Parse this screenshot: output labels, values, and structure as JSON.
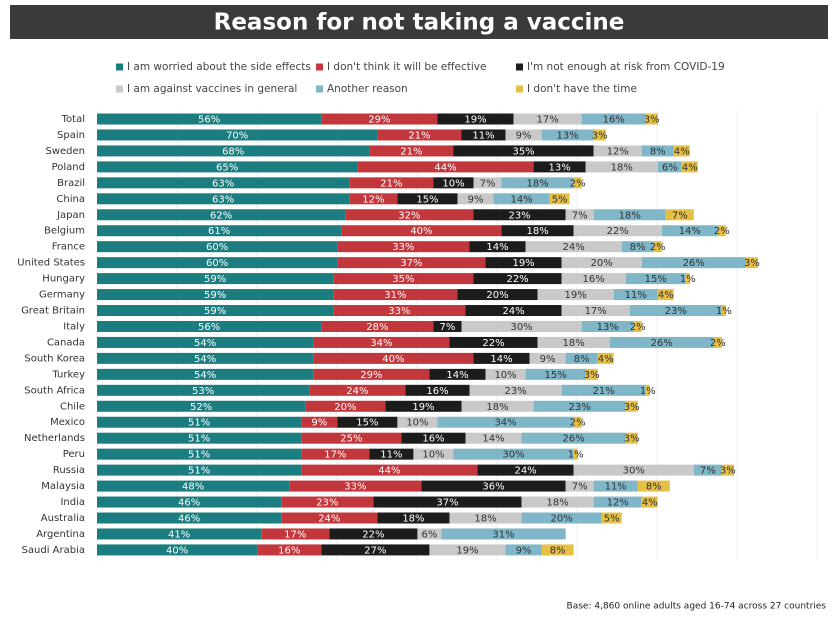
{
  "chart_data": {
    "type": "stacked-bar-horizontal",
    "title": "Reason for not taking a vaccine",
    "footnote": "Base: 4,860 online adults aged 16-74 across 27 countries",
    "categories": [
      "Total",
      "Spain",
      "Sweden",
      "Poland",
      "Brazil",
      "China",
      "Japan",
      "Belgium",
      "France",
      "United States",
      "Hungary",
      "Germany",
      "Great Britain",
      "Italy",
      "Canada",
      "South Korea",
      "Turkey",
      "South Africa",
      "Chile",
      "Mexico",
      "Netherlands",
      "Peru",
      "Russia",
      "Malaysia",
      "India",
      "Australia",
      "Argentina",
      "Saudi Arabia"
    ],
    "xlim": [
      0,
      183
    ],
    "grid": true,
    "series": [
      {
        "name": "I am worried about the side effects",
        "color": "#1b7d7f",
        "values": [
          56,
          70,
          68,
          65,
          63,
          63,
          62,
          61,
          60,
          60,
          59,
          59,
          59,
          56,
          54,
          54,
          54,
          53,
          52,
          51,
          51,
          51,
          51,
          48,
          46,
          46,
          41,
          40
        ],
        "value_labels": [
          "56%",
          "70%",
          "68%",
          "65%",
          "63%",
          "63%",
          "62%",
          "61%",
          "60%",
          "60%",
          "59%",
          "59%",
          "59%",
          "56%",
          "54%",
          "54%",
          "54%",
          "53%",
          "52%",
          "51%",
          "51%",
          "51%",
          "51%",
          "48%",
          "46%",
          "46%",
          "41%",
          "40%"
        ]
      },
      {
        "name": "I don't think it will be effective",
        "color": "#c1373b",
        "values": [
          29,
          21,
          21,
          44,
          21,
          12,
          32,
          40,
          33,
          37,
          35,
          31,
          33,
          28,
          34,
          40,
          29,
          24,
          20,
          9,
          25,
          17,
          44,
          33,
          23,
          24,
          17,
          16
        ],
        "value_labels": [
          "29%",
          "21%",
          "21%",
          "44%",
          "21%",
          "12%",
          "32%",
          "40%",
          "33%",
          "37%",
          "35%",
          "31%",
          "33%",
          "28%",
          "34%",
          "40%",
          "29%",
          "24%",
          "20%",
          "9%",
          "25%",
          "17%",
          "44%",
          "33%",
          "23%",
          "24%",
          "17%",
          "16%"
        ]
      },
      {
        "name": "I'm not enough at risk from COVID-19",
        "color": "#1c1c1c",
        "values": [
          19,
          11,
          35,
          13,
          10,
          15,
          23,
          18,
          14,
          19,
          22,
          20,
          24,
          7,
          22,
          14,
          14,
          16,
          19,
          15,
          16,
          11,
          24,
          36,
          37,
          18,
          22,
          27
        ],
        "value_labels": [
          "19%",
          "11%",
          "35%",
          "13%",
          "10%",
          "15%",
          "23%",
          "18%",
          "14%",
          "19%",
          "22%",
          "20%",
          "24%",
          "7%",
          "22%",
          "14%",
          "14%",
          "16%",
          "19%",
          "15%",
          "16%",
          "11%",
          "24%",
          "36%",
          "37%",
          "18%",
          "22%",
          "27%"
        ]
      },
      {
        "name": "I am against vaccines in general",
        "color": "#c9c9c9",
        "values": [
          17,
          9,
          12,
          18,
          7,
          9,
          7,
          22,
          24,
          20,
          16,
          19,
          17,
          30,
          18,
          9,
          10,
          23,
          18,
          10,
          14,
          10,
          30,
          7,
          18,
          18,
          6,
          19
        ],
        "value_labels": [
          "17%",
          "9%",
          "12%",
          "18%",
          "7%",
          "9%",
          "7%",
          "22%",
          "24%",
          "20%",
          "16%",
          "19%",
          "17%",
          "30%",
          "18%",
          "9%",
          "10%",
          "23%",
          "18%",
          "10%",
          "14%",
          "10%",
          "30%",
          "7%",
          "18%",
          "18%",
          "6%",
          "19%"
        ]
      },
      {
        "name": "Another reason",
        "color": "#7fb6c8",
        "values": [
          16,
          13,
          8,
          6,
          18,
          14,
          18,
          14,
          8,
          26,
          15,
          11,
          23,
          13,
          26,
          8,
          15,
          21,
          23,
          34,
          26,
          30,
          7,
          11,
          12,
          20,
          31,
          9
        ],
        "value_labels": [
          "16%",
          "13%",
          "8%",
          "6%",
          "18%",
          "14%",
          "18%",
          "14%",
          "8%",
          "26%",
          "15%",
          "11%",
          "23%",
          "13%",
          "26%",
          "8%",
          "15%",
          "21%",
          "23%",
          "34%",
          "26%",
          "30%",
          "7%",
          "11%",
          "12%",
          "20%",
          "31%",
          "9%"
        ]
      },
      {
        "name": "I don't have the time",
        "color": "#e6bf45",
        "values": [
          3,
          3,
          4,
          4,
          2,
          5,
          7,
          2,
          2,
          3,
          1,
          4,
          1,
          2,
          2,
          4,
          3,
          1,
          3,
          2,
          3,
          1,
          3,
          8,
          4,
          5,
          null,
          8
        ],
        "value_labels": [
          "3%",
          "3%",
          "4%",
          "4%",
          "2%",
          "5%",
          "7%",
          "2%",
          "2%",
          "3%",
          "1%",
          "4%",
          "1%",
          "2%",
          "2%",
          "4%",
          "3%",
          "1%",
          "3%",
          "2%",
          "3%",
          "1%",
          "3%",
          "8%",
          "4%",
          "5%",
          null,
          "8%"
        ]
      }
    ]
  }
}
